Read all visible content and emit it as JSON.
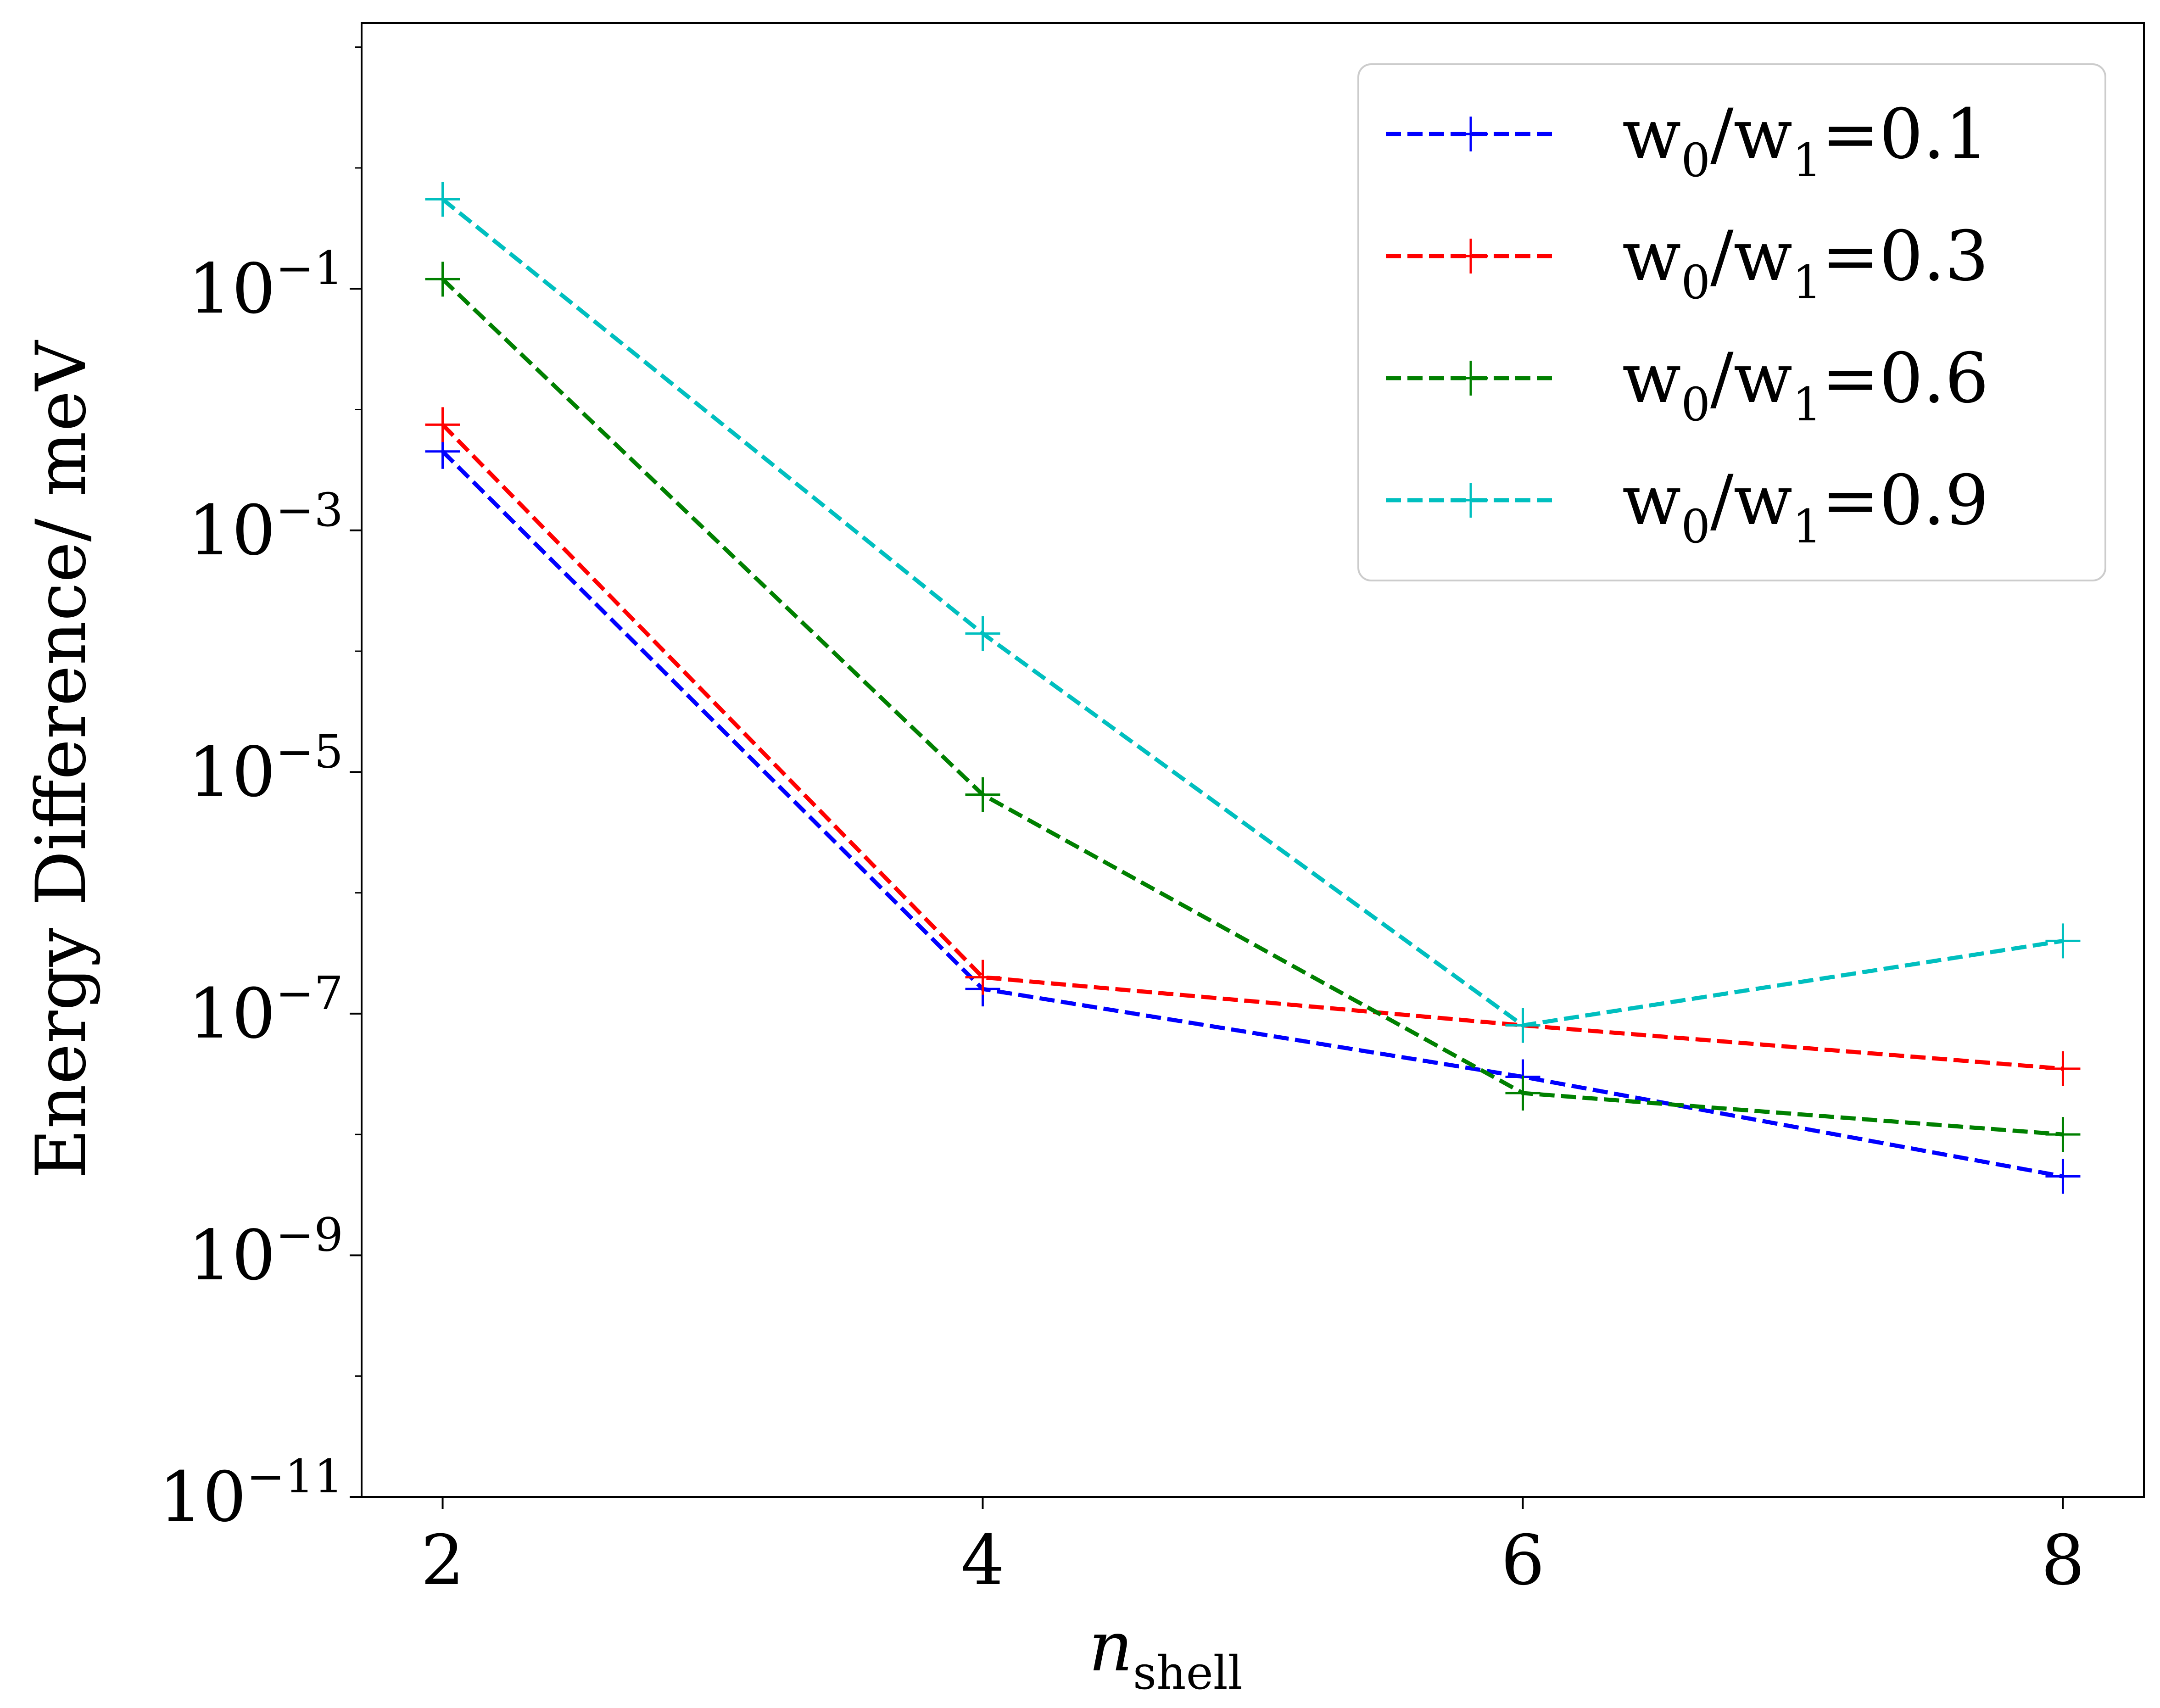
{
  "chart_data": {
    "type": "line",
    "title": "",
    "xlabel": {
      "main": "n",
      "sub": "shell"
    },
    "ylabel": "Energy Difference/ meV",
    "y_scale": "log",
    "ylim_log10": [
      -11,
      1.2
    ],
    "xlim": [
      1.7,
      8.3
    ],
    "x_ticks": [
      2,
      4,
      6,
      8
    ],
    "x_tick_labels": [
      "2",
      "4",
      "6",
      "8"
    ],
    "y_ticks_log10": [
      -11,
      -9,
      -7,
      -5,
      -3,
      -1
    ],
    "y_tick_labels": [
      {
        "base": "10",
        "exp": "−11"
      },
      {
        "base": "10",
        "exp": "−9"
      },
      {
        "base": "10",
        "exp": "−7"
      },
      {
        "base": "10",
        "exp": "−5"
      },
      {
        "base": "10",
        "exp": "−3"
      },
      {
        "base": "10",
        "exp": "−1"
      }
    ],
    "grid": false,
    "legend_position": "top-right",
    "x": [
      2,
      4,
      6,
      8
    ],
    "series": [
      {
        "name": "w0/w1=0.1",
        "label": {
          "a": "w",
          "s0": "0",
          "mid": "/w",
          "s1": "1",
          "tail": "=0.1"
        },
        "color": "#0000ff",
        "values": [
          0.0045,
          1.6e-07,
          3e-08,
          4.5e-09
        ]
      },
      {
        "name": "w0/w1=0.3",
        "label": {
          "a": "w",
          "s0": "0",
          "mid": "/w",
          "s1": "1",
          "tail": "=0.3"
        },
        "color": "#ff0000",
        "values": [
          0.0075,
          2e-07,
          8e-08,
          3.5e-08
        ]
      },
      {
        "name": "w0/w1=0.6",
        "label": {
          "a": "w",
          "s0": "0",
          "mid": "/w",
          "s1": "1",
          "tail": "=0.6"
        },
        "color": "#008000",
        "values": [
          0.12,
          6.5e-06,
          2.2e-08,
          1e-08
        ]
      },
      {
        "name": "w0/w1=0.9",
        "label": {
          "a": "w",
          "s0": "0",
          "mid": "/w",
          "s1": "1",
          "tail": "=0.9"
        },
        "color": "#00bfbf",
        "values": [
          0.55,
          0.00014,
          8e-08,
          4e-07
        ]
      }
    ]
  }
}
